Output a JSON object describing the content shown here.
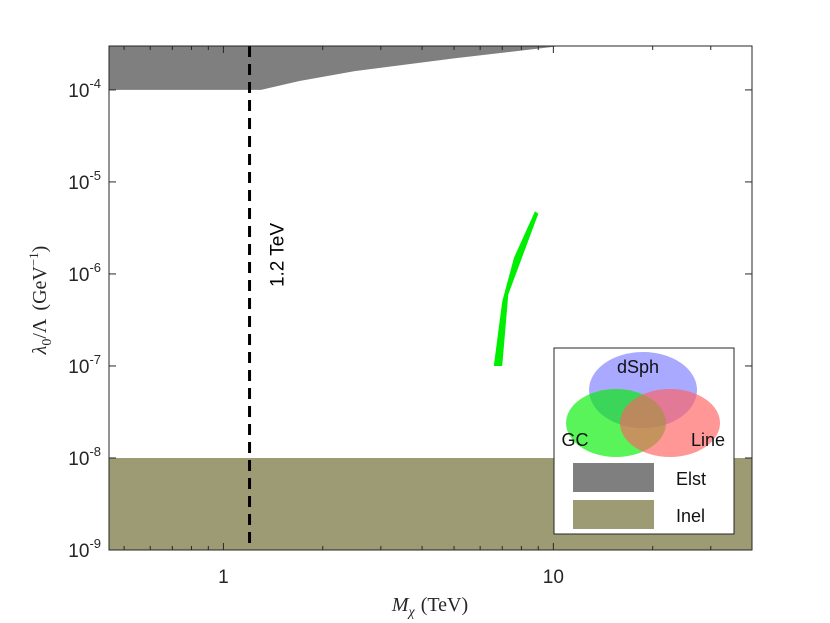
{
  "chart_data": {
    "type": "area",
    "x_scale": "log",
    "y_scale": "log",
    "xlim": [
      0.45,
      40
    ],
    "ylim": [
      1e-09,
      0.0003
    ],
    "xticks": [
      {
        "value": 1,
        "label": "1"
      },
      {
        "value": 10,
        "label": "10"
      }
    ],
    "yticks": [
      {
        "value": 1e-09,
        "base": "10",
        "exp": "-9"
      },
      {
        "value": 1e-08,
        "base": "10",
        "exp": "-8"
      },
      {
        "value": 1e-07,
        "base": "10",
        "exp": "-7"
      },
      {
        "value": 1e-06,
        "base": "10",
        "exp": "-6"
      },
      {
        "value": 1e-05,
        "base": "10",
        "exp": "-5"
      },
      {
        "value": 0.0001,
        "base": "10",
        "exp": "-4"
      }
    ],
    "xlabel": {
      "symbol": "M",
      "sub": "χ",
      "unit": "(TeV)"
    },
    "ylabel": {
      "num": "λ",
      "num_sub": "0",
      "den": "Λ",
      "unit_base": "(GeV",
      "unit_exp": "−1",
      "unit_close": ")"
    },
    "regions": [
      {
        "name": "Elst",
        "color": "#7f7f7f",
        "polygon": [
          [
            0.45,
            0.0001
          ],
          [
            1.3,
            0.0001
          ],
          [
            1.7,
            0.000125
          ],
          [
            2.5,
            0.00016
          ],
          [
            5,
            0.00022
          ],
          [
            10.5,
            0.0003
          ],
          [
            0.45,
            0.0003
          ]
        ]
      },
      {
        "name": "Inel",
        "color": "#9d9b73",
        "polygon": [
          [
            0.45,
            1e-09
          ],
          [
            40,
            1e-09
          ],
          [
            40,
            1e-08
          ],
          [
            0.45,
            1e-08
          ]
        ]
      },
      {
        "name": "GC",
        "color": "#00ee00",
        "polygon": [
          [
            6.6,
            1e-07
          ],
          [
            7.0,
            1e-07
          ],
          [
            7.3,
            6e-07
          ],
          [
            9.0,
            4.5e-06
          ],
          [
            8.8,
            4.8e-06
          ],
          [
            7.6,
            1.5e-06
          ],
          [
            7.0,
            5e-07
          ]
        ]
      }
    ],
    "vline": {
      "x": 1.2,
      "label": "1.2 TeV",
      "color": "#000000",
      "style": "dashed"
    },
    "legend": {
      "position": "bottom-right",
      "venn": [
        {
          "label": "dSph",
          "color": "#6f6fff"
        },
        {
          "label": "GC",
          "color": "#00ee00"
        },
        {
          "label": "Line",
          "color": "#ff5f5f"
        }
      ],
      "entries": [
        {
          "label": "Elst",
          "color": "#7f7f7f"
        },
        {
          "label": "Inel",
          "color": "#9d9b73"
        }
      ]
    }
  }
}
